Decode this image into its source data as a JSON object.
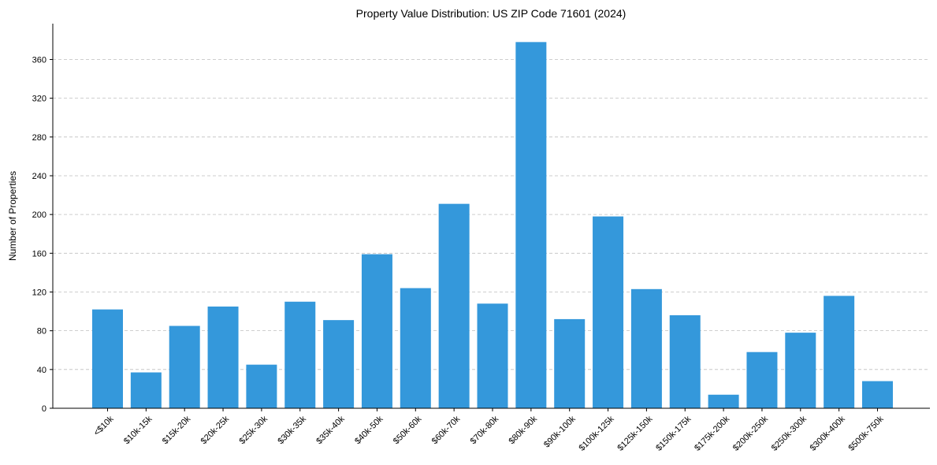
{
  "chart_data": {
    "type": "bar",
    "title": "Property Value Distribution: US ZIP Code 71601 (2024)",
    "xlabel": "",
    "ylabel": "Number of Properties",
    "categories": [
      "<$10k",
      "$10k-15k",
      "$15k-20k",
      "$20k-25k",
      "$25k-30k",
      "$30k-35k",
      "$35k-40k",
      "$40k-50k",
      "$50k-60k",
      "$60k-70k",
      "$70k-80k",
      "$80k-90k",
      "$90k-100k",
      "$100k-125k",
      "$125k-150k",
      "$150k-175k",
      "$175k-200k",
      "$200k-250k",
      "$250k-300k",
      "$300k-400k",
      "$500k-750k"
    ],
    "values": [
      102,
      37,
      85,
      105,
      45,
      110,
      91,
      159,
      124,
      211,
      108,
      378,
      92,
      198,
      123,
      96,
      14,
      58,
      78,
      116,
      28
    ],
    "ylim": [
      0,
      397
    ],
    "yticks": [
      0,
      40,
      80,
      120,
      160,
      200,
      240,
      280,
      320,
      360
    ],
    "grid": true,
    "bar_color": "#3498db"
  }
}
